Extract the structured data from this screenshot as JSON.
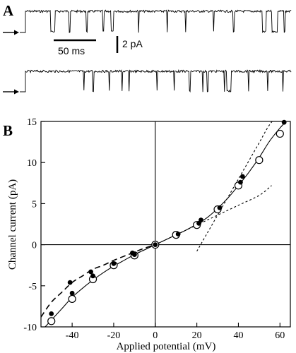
{
  "panels": {
    "a_letter": "A",
    "b_letter": "B"
  },
  "scale_bars": {
    "time_label": "50 ms",
    "current_label": "2 pA"
  },
  "chart_data": {
    "type": "scatter",
    "xlabel": "Applied potential (mV)",
    "ylabel": "Channel current (pA)",
    "xlim": [
      -55,
      65
    ],
    "ylim": [
      -10,
      15
    ],
    "x_ticks": [
      -40,
      -20,
      0,
      20,
      40,
      60
    ],
    "y_ticks": [
      -10,
      -5,
      0,
      5,
      10,
      15
    ],
    "grid": false,
    "series": [
      {
        "marker": "open-circle",
        "x": [
          -50,
          -40,
          -30,
          -20,
          -10,
          0,
          10,
          20,
          30,
          40,
          50,
          60
        ],
        "y": [
          -9.3,
          -6.6,
          -4.2,
          -2.5,
          -1.3,
          0,
          1.2,
          2.4,
          4.3,
          7.2,
          10.3,
          13.5
        ]
      },
      {
        "marker": "filled-circle",
        "x": [
          -50,
          -41,
          -40,
          -31,
          -30,
          -20,
          -11,
          -10,
          0,
          11,
          21,
          22,
          31,
          41,
          42,
          62
        ],
        "y": [
          -8.4,
          -4.6,
          -5.9,
          -3.3,
          -3.8,
          -2.3,
          -1.0,
          -1.2,
          0,
          1.3,
          2.6,
          3.0,
          4.5,
          7.6,
          8.3,
          14.9
        ]
      }
    ],
    "fit_curves": [
      {
        "style": "solid",
        "x": [
          -53,
          -45,
          -40,
          -35,
          -30,
          -25,
          -20,
          -15,
          -10,
          -5,
          0,
          5,
          10,
          15,
          20,
          25,
          30,
          35,
          40,
          45,
          50,
          55,
          60,
          63
        ],
        "y": [
          -10.0,
          -7.8,
          -6.4,
          -5.3,
          -4.3,
          -3.4,
          -2.6,
          -1.9,
          -1.2,
          -0.6,
          0.0,
          0.6,
          1.2,
          1.8,
          2.5,
          3.3,
          4.4,
          5.7,
          7.2,
          8.8,
          10.6,
          12.6,
          14.2,
          15.0
        ]
      },
      {
        "style": "dashed",
        "x": [
          -55,
          -50,
          -45,
          -40,
          -35,
          -30,
          -25,
          -20,
          -15,
          -10,
          -5,
          0
        ],
        "y": [
          -8.8,
          -7.0,
          -5.8,
          -4.6,
          -3.8,
          -3.0,
          -2.5,
          -1.9,
          -1.4,
          -0.9,
          -0.4,
          0.0
        ]
      },
      {
        "style": "dotted",
        "x": [
          -10,
          0,
          10,
          20,
          30,
          40,
          50,
          56
        ],
        "y": [
          -1.2,
          0.0,
          1.2,
          2.4,
          3.6,
          4.8,
          6.0,
          7.2
        ]
      },
      {
        "style": "dotted",
        "x": [
          20,
          25,
          30,
          35,
          40,
          45,
          50,
          55,
          60
        ],
        "y": [
          -0.8,
          1.4,
          3.6,
          5.8,
          8.0,
          10.2,
          12.4,
          14.6,
          16.0
        ]
      }
    ]
  }
}
